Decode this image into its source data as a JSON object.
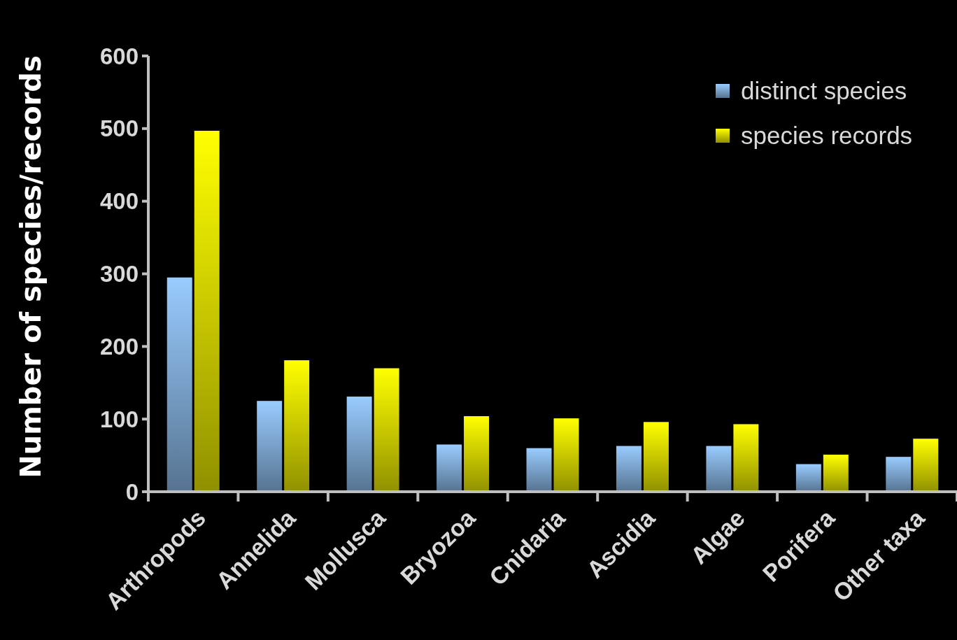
{
  "chart_data": {
    "type": "bar",
    "ylabel": "Number of species/records",
    "categories": [
      "Arthropods",
      "Annelida",
      "Mollusca",
      "Bryozoa",
      "Cnidaria",
      "Ascidia",
      "Algae",
      "Porifera",
      "Other taxa"
    ],
    "series": [
      {
        "name": "distinct species",
        "color": "#99ccff",
        "values": [
          295,
          125,
          131,
          65,
          60,
          63,
          63,
          38,
          48
        ]
      },
      {
        "name": "species records",
        "color": "#ffff00",
        "values": [
          497,
          181,
          170,
          104,
          101,
          96,
          93,
          51,
          73
        ]
      }
    ],
    "ylim": [
      0,
      600
    ],
    "yticks": [
      0,
      100,
      200,
      300,
      400,
      500,
      600
    ],
    "grid": false,
    "legend": "top right"
  }
}
